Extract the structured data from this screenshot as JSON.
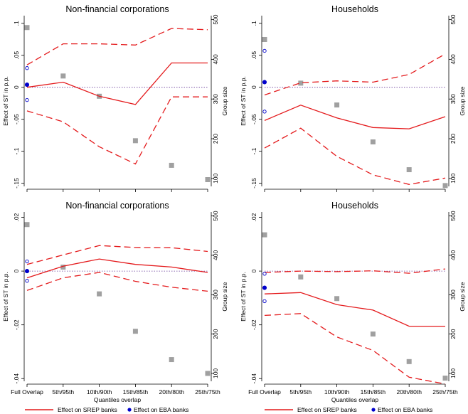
{
  "colors": {
    "srep": "#e41a1c",
    "eba": "#0000cc",
    "group": "#a0a0a0",
    "zero_line": "#6a3d9a"
  },
  "legend": {
    "srep_label": "Effect on SREP banks",
    "eba_label": "Effect on EBA banks"
  },
  "chart_data": [
    {
      "type": "line",
      "title": "Non-financial corporations",
      "categories": [
        "Full Overlap",
        "5th/95th",
        "10th/90th",
        "15th/85th",
        "20th/80th",
        "25th/75th"
      ],
      "ylabel": "Effect of ST in p.p.",
      "y2label": "Group size",
      "xlabel": "",
      "ylim": [
        -0.155,
        0.112
      ],
      "yticks": [
        {
          "v": 0.1,
          "l": ".1"
        },
        {
          "v": 0.05,
          "l": ".05"
        },
        {
          "v": 0,
          "l": "0"
        },
        {
          "v": -0.05,
          "l": "-.05"
        },
        {
          "v": -0.1,
          "l": "-.1"
        },
        {
          "v": -0.15,
          "l": "-.15"
        }
      ],
      "y2lim": [
        80,
        510
      ],
      "y2ticks": [
        500,
        400,
        300,
        200,
        100
      ],
      "series": [
        {
          "name": "Effect on SREP banks",
          "values": [
            0,
            0.008,
            -0.014,
            -0.027,
            0.038,
            0.038
          ]
        },
        {
          "name": "Upper CI",
          "values": [
            0.035,
            0.068,
            0.068,
            0.066,
            0.092,
            0.09
          ]
        },
        {
          "name": "Lower CI",
          "values": [
            -0.037,
            -0.054,
            -0.093,
            -0.12,
            -0.015,
            -0.015
          ]
        }
      ],
      "eba_points": [
        {
          "y": 0.03,
          "filled": false
        },
        {
          "y": 0.004,
          "filled": true
        },
        {
          "y": -0.02,
          "filled": false
        }
      ],
      "group_size": [
        480,
        358,
        307,
        195,
        133,
        97
      ],
      "show_xticklabels": false
    },
    {
      "type": "line",
      "title": "Households",
      "categories": [
        "Full Overlap",
        "5th/95th",
        "10th/90th",
        "15th/85th",
        "20th/80th",
        "25th/75th"
      ],
      "ylabel": "Effect of ST in p.p.",
      "y2label": "Group size",
      "xlabel": "",
      "ylim": [
        -0.155,
        0.112
      ],
      "yticks": [
        {
          "v": 0.1,
          "l": ".1"
        },
        {
          "v": 0.05,
          "l": ".05"
        },
        {
          "v": 0,
          "l": "0"
        },
        {
          "v": -0.05,
          "l": "-.05"
        },
        {
          "v": -0.1,
          "l": "-.1"
        },
        {
          "v": -0.15,
          "l": "-.15"
        }
      ],
      "y2lim": [
        80,
        510
      ],
      "y2ticks": [
        500,
        400,
        300,
        200,
        100
      ],
      "series": [
        {
          "name": "Effect on SREP banks",
          "values": [
            -0.052,
            -0.028,
            -0.048,
            -0.063,
            -0.065,
            -0.046
          ]
        },
        {
          "name": "Upper CI",
          "values": [
            -0.012,
            0.007,
            0.01,
            0.008,
            0.02,
            0.052
          ]
        },
        {
          "name": "Lower CI",
          "values": [
            -0.095,
            -0.064,
            -0.108,
            -0.137,
            -0.152,
            -0.142
          ]
        }
      ],
      "eba_points": [
        {
          "y": 0.057,
          "filled": false
        },
        {
          "y": 0.008,
          "filled": true
        },
        {
          "y": -0.038,
          "filled": false
        }
      ],
      "group_size": [
        450,
        340,
        285,
        192,
        122,
        82
      ],
      "show_xticklabels": false
    },
    {
      "type": "line",
      "title": "Non-financial corporations",
      "categories": [
        "Full Overlap",
        "5th/95th",
        "10th/90th",
        "15th/85th",
        "20th/80th",
        "25th/75th"
      ],
      "ylabel": "Effect of ST in p.p.",
      "y2label": "Group size",
      "xlabel": "Quantiles overlap",
      "ylim": [
        -0.041,
        0.022
      ],
      "yticks": [
        {
          "v": 0.02,
          "l": ".02"
        },
        {
          "v": 0,
          "l": "0"
        },
        {
          "v": -0.02,
          "l": "-.02"
        },
        {
          "v": -0.04,
          "l": "-.04"
        }
      ],
      "y2lim": [
        80,
        510
      ],
      "y2ticks": [
        500,
        400,
        300,
        200,
        100
      ],
      "series": [
        {
          "name": "Effect on SREP banks",
          "values": [
            -0.0025,
            0.0018,
            0.0045,
            0.0025,
            0.0015,
            -0.0005
          ]
        },
        {
          "name": "Upper CI",
          "values": [
            0.0025,
            0.006,
            0.0095,
            0.0088,
            0.0087,
            0.0073
          ]
        },
        {
          "name": "Lower CI",
          "values": [
            -0.0072,
            -0.0025,
            -0.0005,
            -0.0038,
            -0.006,
            -0.0075
          ]
        }
      ],
      "eba_points": [
        {
          "y": 0.0036,
          "filled": false
        },
        {
          "y": 0,
          "filled": true
        },
        {
          "y": -0.0036,
          "filled": false
        }
      ],
      "group_size": [
        478,
        370,
        302,
        207,
        135,
        100
      ],
      "show_xticklabels": true
    },
    {
      "type": "line",
      "title": "Households",
      "categories": [
        "Full Overlap",
        "5th/95th",
        "10th/90th",
        "15th/85th",
        "20th/80th",
        "25th/75th"
      ],
      "ylabel": "Effect of ST in p.p.",
      "y2label": "Group size",
      "xlabel": "Quantiles overlap",
      "ylim": [
        -0.041,
        0.022
      ],
      "yticks": [
        {
          "v": 0.02,
          "l": ".02"
        },
        {
          "v": 0,
          "l": "0"
        },
        {
          "v": -0.02,
          "l": "-.02"
        },
        {
          "v": -0.04,
          "l": "-.04"
        }
      ],
      "y2lim": [
        80,
        510
      ],
      "y2ticks": [
        500,
        400,
        300,
        200,
        100
      ],
      "series": [
        {
          "name": "Effect on SREP banks",
          "values": [
            -0.0085,
            -0.008,
            -0.0125,
            -0.0145,
            -0.0205,
            -0.0205
          ]
        },
        {
          "name": "Upper CI",
          "values": [
            -0.0005,
            0,
            -0.0002,
            0.0001,
            -0.0008,
            0.0008
          ]
        },
        {
          "name": "Lower CI",
          "values": [
            -0.0165,
            -0.0158,
            -0.0245,
            -0.0295,
            -0.0395,
            -0.042
          ]
        }
      ],
      "eba_points": [
        {
          "y": -0.001,
          "filled": false
        },
        {
          "y": -0.0062,
          "filled": true
        },
        {
          "y": -0.0112,
          "filled": false
        }
      ],
      "group_size": [
        452,
        345,
        290,
        200,
        130,
        88
      ],
      "show_xticklabels": true
    }
  ]
}
